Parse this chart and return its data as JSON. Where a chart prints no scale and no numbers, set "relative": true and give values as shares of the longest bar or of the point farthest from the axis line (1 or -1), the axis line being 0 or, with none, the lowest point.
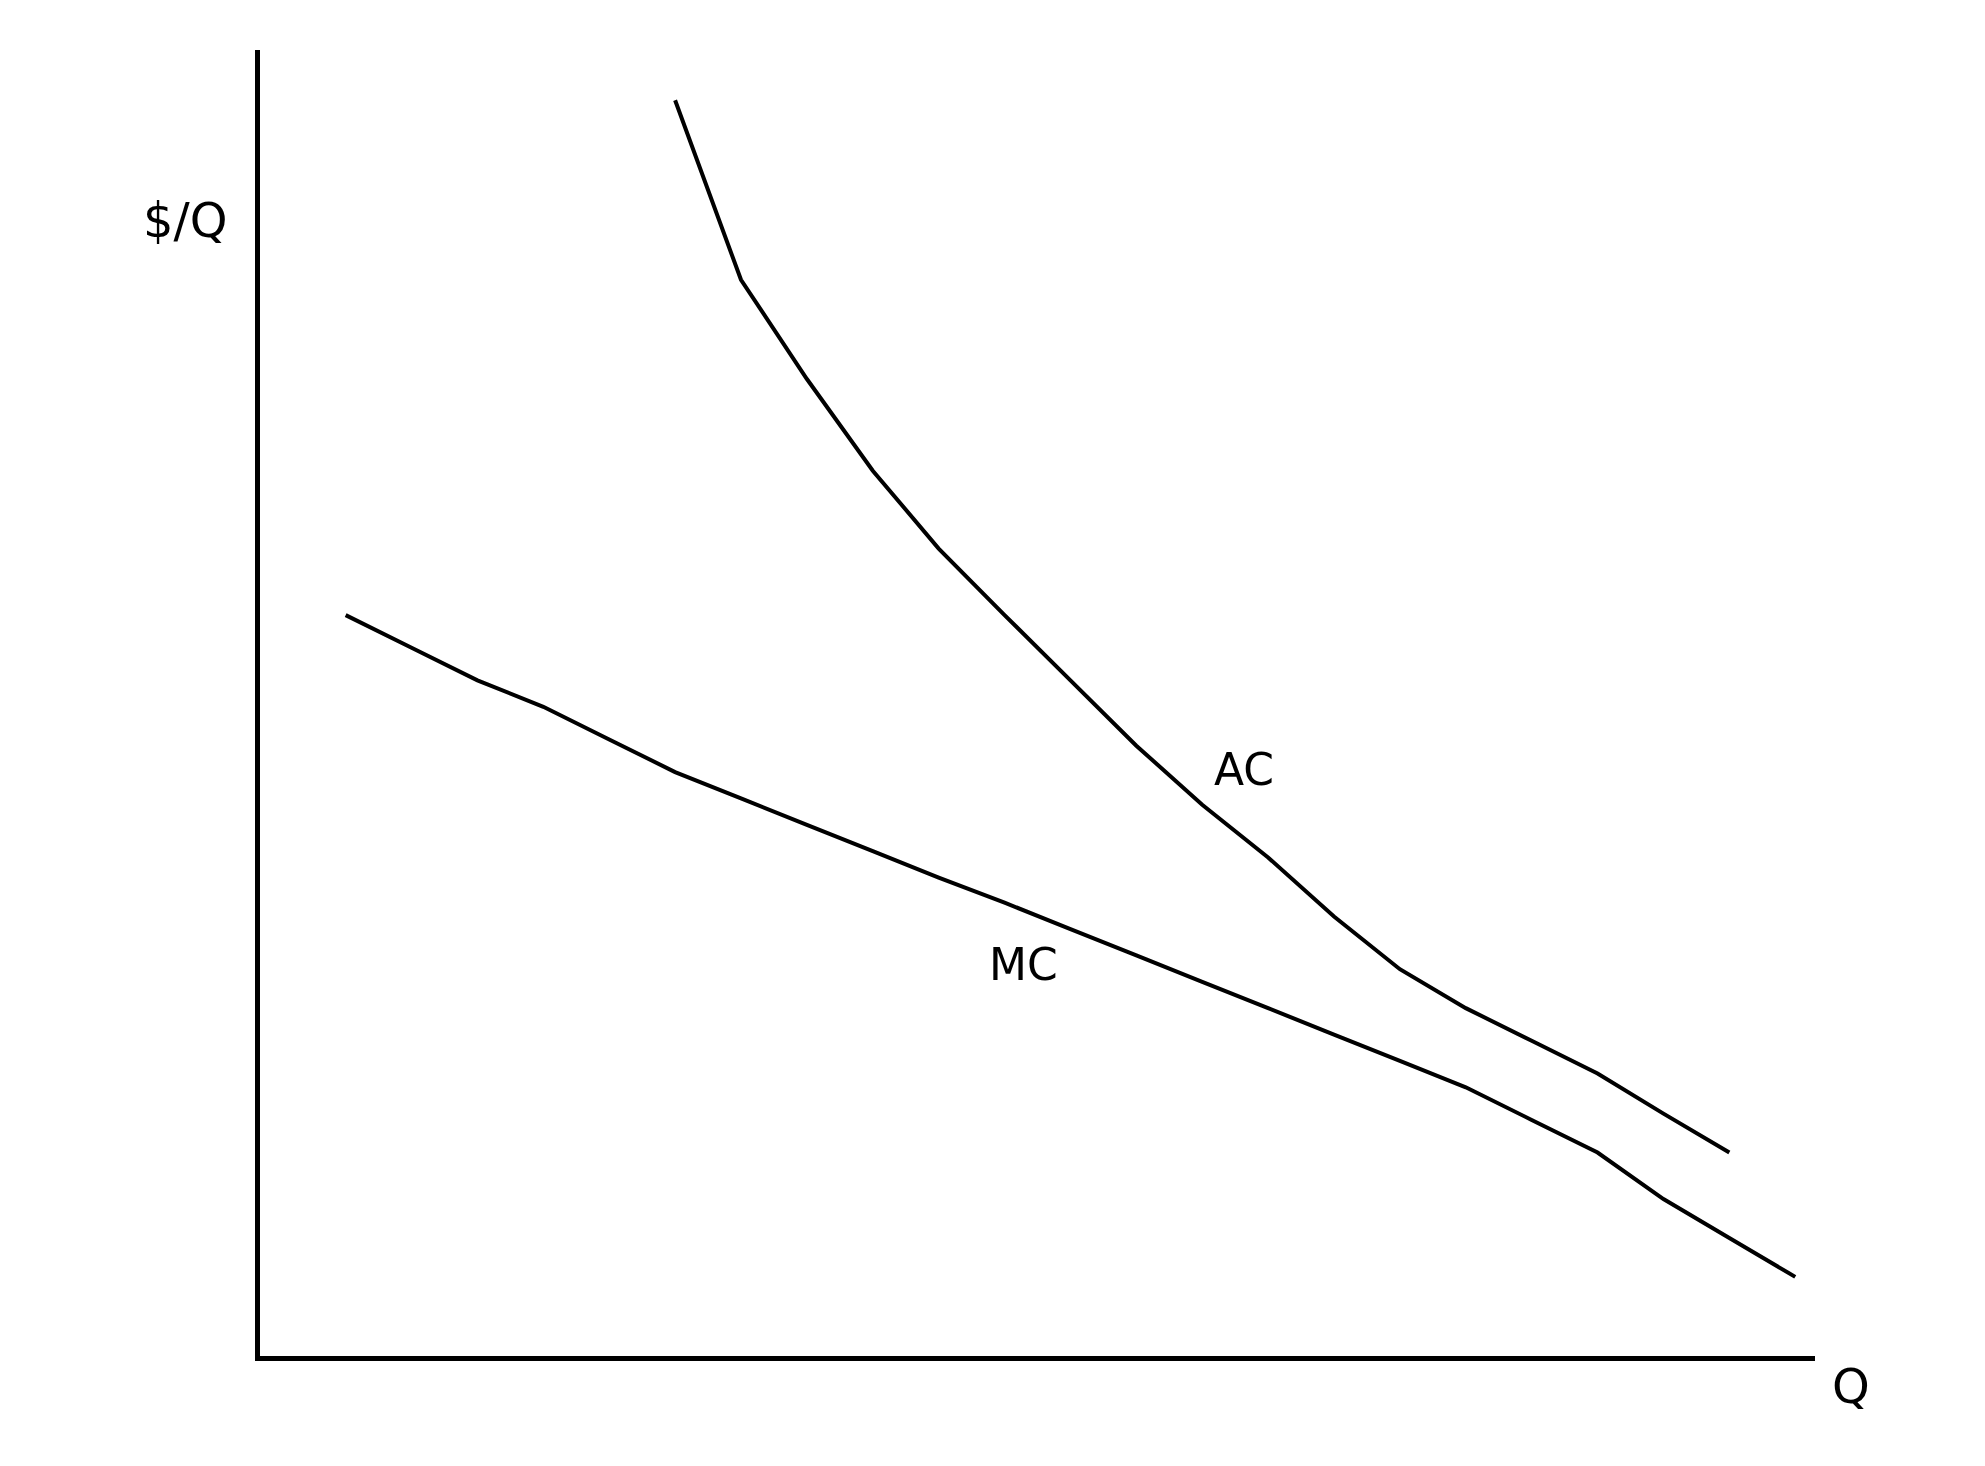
{
  "chart_data": {
    "type": "line",
    "relative": true,
    "xlabel": "Q",
    "ylabel": "$/Q",
    "legend": false,
    "marker": "none",
    "line_style": "solid",
    "categories": [
      null,
      null,
      null,
      null,
      null,
      null,
      null,
      null,
      null,
      null,
      null,
      null,
      null,
      null,
      null,
      null,
      null,
      null,
      null,
      null,
      null,
      null,
      null
    ],
    "series": [
      {
        "name": "AC",
        "color": "#000000",
        "values": [
          null,
          null,
          null,
          null,
          null,
          1,
          0.857,
          0.778,
          0.705,
          0.643,
          0.59,
          0.538,
          0.486,
          0.439,
          0.397,
          0.35,
          0.308,
          0.277,
          0.251,
          0.225,
          0.193,
          0.162,
          null
        ]
      },
      {
        "name": "MC",
        "color": "#000000",
        "values": [
          0.59,
          0.564,
          0.538,
          0.517,
          0.491,
          0.465,
          0.444,
          0.423,
          0.402,
          0.381,
          0.361,
          0.34,
          0.319,
          0.298,
          0.277,
          0.256,
          0.235,
          0.214,
          0.188,
          0.162,
          0.125,
          0.094,
          0.063
        ]
      }
    ]
  }
}
